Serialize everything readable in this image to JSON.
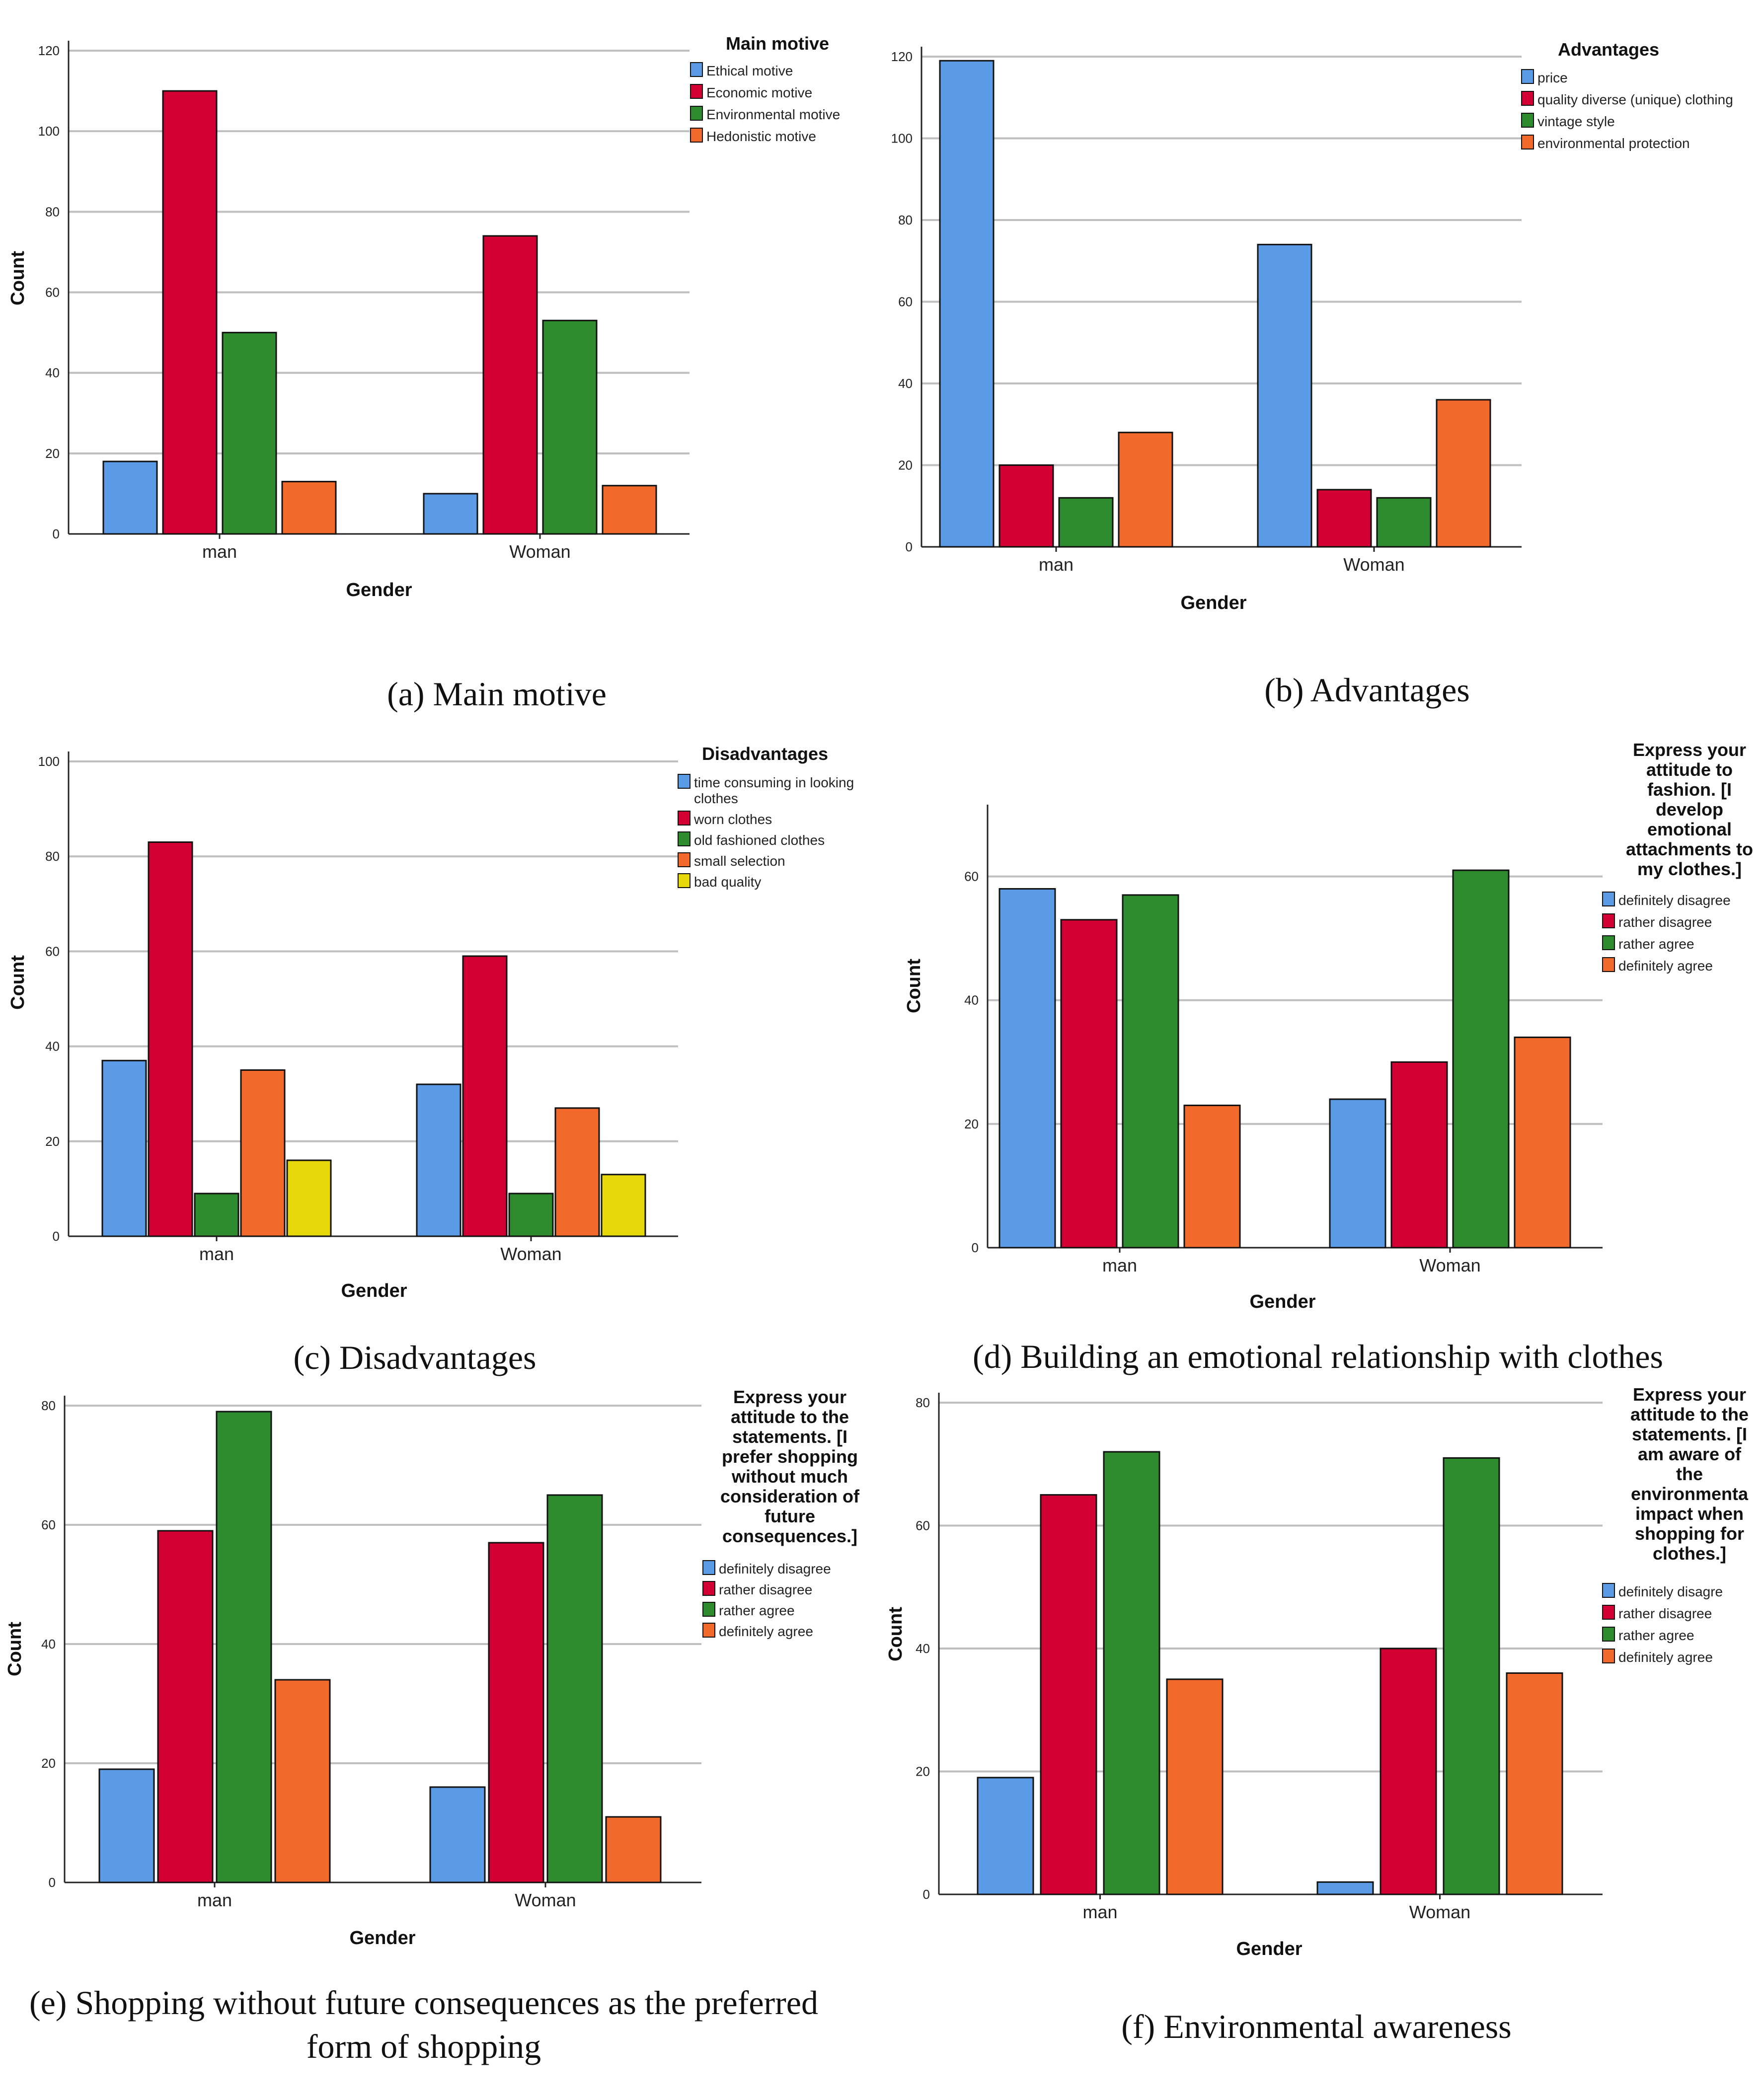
{
  "colors": {
    "blue": "#5B9BE6",
    "red": "#D30033",
    "green": "#2E8B2E",
    "orange": "#F26A2B",
    "yellow": "#E6D80B",
    "grid": "#BFBFBF",
    "axis": "#222222"
  },
  "chart_data": [
    {
      "type": "bar",
      "caption": "(a)   Main motive",
      "xlabel": "Gender",
      "ylabel": "Count",
      "categories": [
        "man",
        "Woman"
      ],
      "ylim": [
        0,
        120
      ],
      "yticks": [
        0,
        20,
        40,
        60,
        80,
        100,
        120
      ],
      "legend_title": [
        "Main motive"
      ],
      "legend_placement": "top-right",
      "series": [
        {
          "name": [
            "Ethical motive"
          ],
          "color": "#5B9BE6",
          "values": [
            18,
            10
          ]
        },
        {
          "name": [
            "Economic motive"
          ],
          "color": "#D30033",
          "values": [
            110,
            74
          ]
        },
        {
          "name": [
            "Environmental motive"
          ],
          "color": "#2E8B2E",
          "values": [
            50,
            53
          ]
        },
        {
          "name": [
            "Hedonistic motive"
          ],
          "color": "#F26A2B",
          "values": [
            13,
            12
          ]
        }
      ]
    },
    {
      "type": "bar",
      "caption": "(b)   Advantages",
      "xlabel": "Gender",
      "ylabel": "",
      "categories": [
        "man",
        "Woman"
      ],
      "ylim": [
        0,
        120
      ],
      "yticks": [
        0,
        20,
        40,
        60,
        80,
        100,
        120
      ],
      "legend_title": [
        "Advantages"
      ],
      "legend_placement": "top-right",
      "series": [
        {
          "name": [
            "price"
          ],
          "color": "#5B9BE6",
          "values": [
            119,
            74
          ]
        },
        {
          "name": [
            "quality diverse (unique) clothing"
          ],
          "color": "#D30033",
          "values": [
            20,
            14
          ]
        },
        {
          "name": [
            "vintage style"
          ],
          "color": "#2E8B2E",
          "values": [
            12,
            12
          ]
        },
        {
          "name": [
            "environmental protection"
          ],
          "color": "#F26A2B",
          "values": [
            28,
            36
          ]
        }
      ]
    },
    {
      "type": "bar",
      "caption": "(c) Disadvantages",
      "xlabel": "Gender",
      "ylabel": "Count",
      "categories": [
        "man",
        "Woman"
      ],
      "ylim": [
        0,
        100
      ],
      "yticks": [
        0,
        20,
        40,
        60,
        80,
        100
      ],
      "legend_title": [
        "Disadvantages"
      ],
      "legend_placement": "top-right",
      "series": [
        {
          "name": [
            "time consuming in looking",
            "clothes"
          ],
          "color": "#5B9BE6",
          "values": [
            37,
            32
          ]
        },
        {
          "name": [
            "worn clothes"
          ],
          "color": "#D30033",
          "values": [
            83,
            59
          ]
        },
        {
          "name": [
            "old fashioned clothes"
          ],
          "color": "#2E8B2E",
          "values": [
            9,
            9
          ]
        },
        {
          "name": [
            "small selection"
          ],
          "color": "#F26A2B",
          "values": [
            35,
            27
          ]
        },
        {
          "name": [
            "bad quality"
          ],
          "color": "#E6D80B",
          "values": [
            16,
            13
          ]
        }
      ]
    },
    {
      "type": "bar",
      "caption": "(d) Building an emotional relationship with clothes",
      "xlabel": "Gender",
      "ylabel": "Count",
      "categories": [
        "man",
        "Woman"
      ],
      "ylim": [
        0,
        70
      ],
      "yticks": [
        0,
        20,
        40,
        60
      ],
      "legend_title": [
        "Express your",
        "attitude to",
        "fashion. [I",
        "develop",
        "emotional",
        "attachments to",
        "my clothes.]"
      ],
      "legend_placement": "top-right",
      "series": [
        {
          "name": [
            "definitely disagree"
          ],
          "color": "#5B9BE6",
          "values": [
            58,
            24
          ]
        },
        {
          "name": [
            "rather disagree"
          ],
          "color": "#D30033",
          "values": [
            53,
            30
          ]
        },
        {
          "name": [
            "rather agree"
          ],
          "color": "#2E8B2E",
          "values": [
            57,
            61
          ]
        },
        {
          "name": [
            "definitely agree"
          ],
          "color": "#F26A2B",
          "values": [
            23,
            34
          ]
        }
      ]
    },
    {
      "type": "bar",
      "caption": "(e) Shopping without future consequences as the preferred\nform of shopping",
      "xlabel": "Gender",
      "ylabel": "Count",
      "categories": [
        "man",
        "Woman"
      ],
      "ylim": [
        0,
        80
      ],
      "yticks": [
        0,
        20,
        40,
        60,
        80
      ],
      "legend_title": [
        "Express your",
        "attitude to the",
        "statements. [I",
        "prefer shopping",
        "without much",
        "consideration of",
        "future",
        "consequences.]"
      ],
      "legend_placement": "top-right",
      "series": [
        {
          "name": [
            "definitely disagree"
          ],
          "color": "#5B9BE6",
          "values": [
            19,
            16
          ]
        },
        {
          "name": [
            "rather disagree"
          ],
          "color": "#D30033",
          "values": [
            59,
            57
          ]
        },
        {
          "name": [
            "rather agree"
          ],
          "color": "#2E8B2E",
          "values": [
            79,
            65
          ]
        },
        {
          "name": [
            "definitely agree"
          ],
          "color": "#F26A2B",
          "values": [
            34,
            11
          ]
        }
      ]
    },
    {
      "type": "bar",
      "caption": "(f) Environmental awareness",
      "xlabel": "Gender",
      "ylabel": "Count",
      "categories": [
        "man",
        "Woman"
      ],
      "ylim": [
        0,
        80
      ],
      "yticks": [
        0,
        20,
        40,
        60,
        80
      ],
      "legend_title": [
        "Express your",
        "attitude to the",
        "statements. [I",
        "am aware of",
        "the",
        "environmenta",
        "impact when",
        "shopping for",
        "clothes.]"
      ],
      "legend_placement": "top-right",
      "series": [
        {
          "name": [
            "definitely disagre"
          ],
          "color": "#5B9BE6",
          "values": [
            19,
            2
          ]
        },
        {
          "name": [
            "rather disagree"
          ],
          "color": "#D30033",
          "values": [
            65,
            40
          ]
        },
        {
          "name": [
            "rather agree"
          ],
          "color": "#2E8B2E",
          "values": [
            72,
            71
          ]
        },
        {
          "name": [
            "definitely agree"
          ],
          "color": "#F26A2B",
          "values": [
            35,
            36
          ]
        }
      ]
    }
  ]
}
